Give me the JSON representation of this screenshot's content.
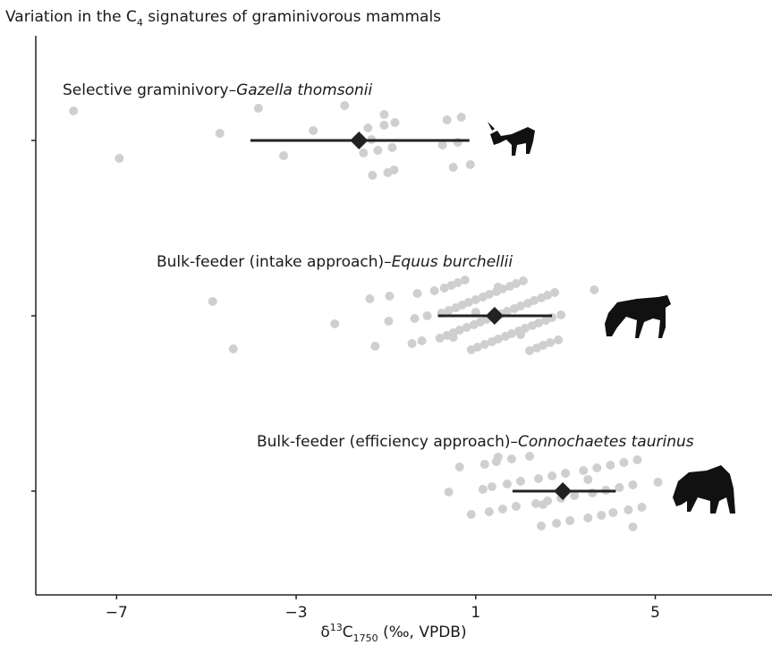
{
  "chart_data": {
    "type": "strip",
    "title": [
      "Variation in the C",
      "4",
      " signatures of graminivorous mammals"
    ],
    "x_label": [
      "δ",
      "13",
      "C",
      "1750",
      " (‰, VPDB)"
    ],
    "xlim": [
      -8.8,
      7.6
    ],
    "xticks": [
      {
        "value": -7,
        "label": "−7"
      },
      {
        "value": -3,
        "label": "−3"
      },
      1,
      5
    ],
    "point_color": "#cfcfcf",
    "summary_color": "#222222",
    "series": [
      {
        "name": "Selective graminivory–",
        "species": "Gazella thomsonii",
        "values": [
          -7.96,
          -6.94,
          -4.7,
          -3.84,
          -3.28,
          -2.62,
          -1.92,
          -1.5,
          -1.4,
          -1.3,
          -1.18,
          -1.04,
          -0.96,
          -0.86,
          -0.8,
          -0.82,
          0.26,
          0.36,
          0.5,
          0.6,
          0.68,
          0.88,
          -1.32,
          -1.04
        ],
        "mean": -1.6,
        "range": [
          -4.02,
          0.86
        ]
      },
      {
        "name": "Bulk-feeder (intake approach)–",
        "species": "Equus burchellii",
        "values": [
          -4.86,
          -4.4,
          -2.14,
          -1.36,
          -1.24,
          -0.94,
          -0.92,
          -0.42,
          -0.36,
          -0.3,
          -0.2,
          -0.08,
          0.08,
          0.2,
          0.24,
          0.3,
          0.36,
          0.4,
          0.46,
          0.5,
          0.56,
          0.6,
          0.64,
          0.7,
          0.76,
          0.8,
          0.84,
          0.9,
          0.96,
          1.0,
          1.04,
          1.1,
          1.16,
          1.2,
          1.24,
          1.3,
          1.36,
          1.4,
          1.46,
          1.5,
          1.56,
          1.6,
          1.66,
          1.7,
          1.76,
          1.8,
          1.86,
          1.9,
          1.96,
          2.0,
          2.06,
          2.1,
          2.16,
          2.2,
          2.26,
          2.3,
          2.36,
          2.4,
          2.46,
          2.5,
          2.56,
          2.6,
          2.66,
          2.7,
          2.76,
          2.84,
          2.9,
          3.64,
          0.5,
          1.0,
          1.5,
          2.0
        ],
        "mean": 1.42,
        "range": [
          0.16,
          2.7
        ]
      },
      {
        "name": "Bulk-feeder (efficiency approach)–",
        "species": "Connochaetes taurinus",
        "values": [
          0.4,
          0.64,
          0.9,
          1.16,
          1.2,
          1.3,
          1.36,
          1.46,
          1.6,
          1.7,
          1.8,
          1.9,
          2.0,
          2.2,
          2.34,
          2.4,
          2.46,
          2.6,
          2.7,
          2.8,
          2.9,
          3.0,
          3.1,
          3.2,
          3.4,
          3.5,
          3.6,
          3.7,
          3.8,
          3.9,
          4.0,
          4.06,
          4.2,
          4.3,
          4.4,
          4.5,
          4.6,
          4.7,
          5.06,
          1.5,
          2.5,
          3.5,
          4.5
        ],
        "mean": 2.94,
        "range": [
          1.82,
          4.12
        ]
      }
    ]
  }
}
